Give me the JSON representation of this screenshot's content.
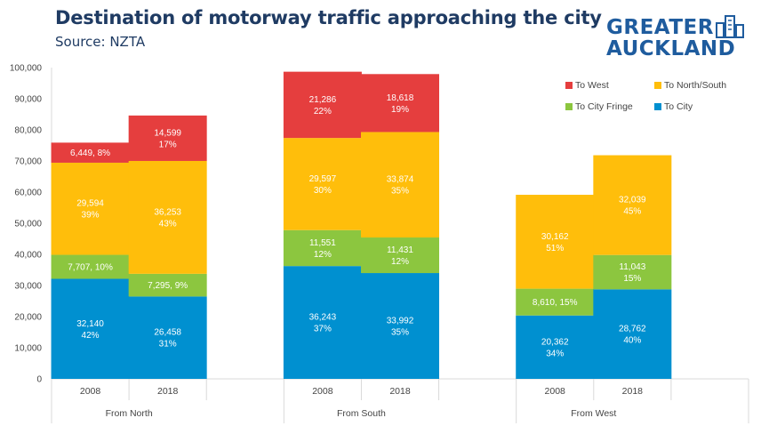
{
  "header": {
    "title": "Destination of motorway traffic approaching the city",
    "subtitle": "Source: NZTA"
  },
  "logo": {
    "line1": "GREATER",
    "line2": "AUCKLAND"
  },
  "colors": {
    "to_city": "#0090d0",
    "to_city_fringe": "#8cc63f",
    "to_north_south": "#ffbe0b",
    "to_west": "#e53e3e",
    "title": "#1f3b63",
    "logo": "#1f5c9e"
  },
  "chart_data": {
    "type": "bar",
    "stacked": true,
    "title": "Destination of motorway traffic approaching the city",
    "ylim": [
      0,
      100000
    ],
    "yticks": [
      "0",
      "10,000",
      "20,000",
      "30,000",
      "40,000",
      "50,000",
      "60,000",
      "70,000",
      "80,000",
      "90,000",
      "100,000"
    ],
    "groups": [
      {
        "name": "From North",
        "categories": [
          "2008",
          "2018"
        ]
      },
      {
        "name": "From South",
        "categories": [
          "2008",
          "2018"
        ]
      },
      {
        "name": "From West",
        "categories": [
          "2008",
          "2018"
        ]
      }
    ],
    "legend": [
      "To West",
      "To North/South",
      "To City Fringe",
      "To City"
    ],
    "series": [
      {
        "name": "To City",
        "color": "#0090d0",
        "values": [
          32140,
          26458,
          36243,
          33992,
          20362,
          28762
        ],
        "labels": [
          [
            "32,140",
            "42%"
          ],
          [
            "26,458",
            "31%"
          ],
          [
            "36,243",
            "37%"
          ],
          [
            "33,992",
            "35%"
          ],
          [
            "20,362",
            "34%"
          ],
          [
            "28,762",
            "40%"
          ]
        ]
      },
      {
        "name": "To City Fringe",
        "color": "#8cc63f",
        "values": [
          7707,
          7295,
          11551,
          11431,
          8610,
          11043
        ],
        "labels": [
          [
            "7,707, 10%"
          ],
          [
            "7,295, 9%"
          ],
          [
            "11,551",
            "12%"
          ],
          [
            "11,431",
            "12%"
          ],
          [
            "8,610, 15%"
          ],
          [
            "11,043",
            "15%"
          ]
        ]
      },
      {
        "name": "To North/South",
        "color": "#ffbe0b",
        "values": [
          29594,
          36253,
          29597,
          33874,
          30162,
          32039
        ],
        "labels": [
          [
            "29,594",
            "39%"
          ],
          [
            "36,253",
            "43%"
          ],
          [
            "29,597",
            "30%"
          ],
          [
            "33,874",
            "35%"
          ],
          [
            "30,162",
            "51%"
          ],
          [
            "32,039",
            "45%"
          ]
        ]
      },
      {
        "name": "To West",
        "color": "#e53e3e",
        "values": [
          6449,
          14599,
          21286,
          18618,
          0,
          0
        ],
        "labels": [
          [
            "6,449, 8%"
          ],
          [
            "14,599",
            "17%"
          ],
          [
            "21,286",
            "22%"
          ],
          [
            "18,618",
            "19%"
          ],
          [],
          []
        ]
      }
    ]
  }
}
